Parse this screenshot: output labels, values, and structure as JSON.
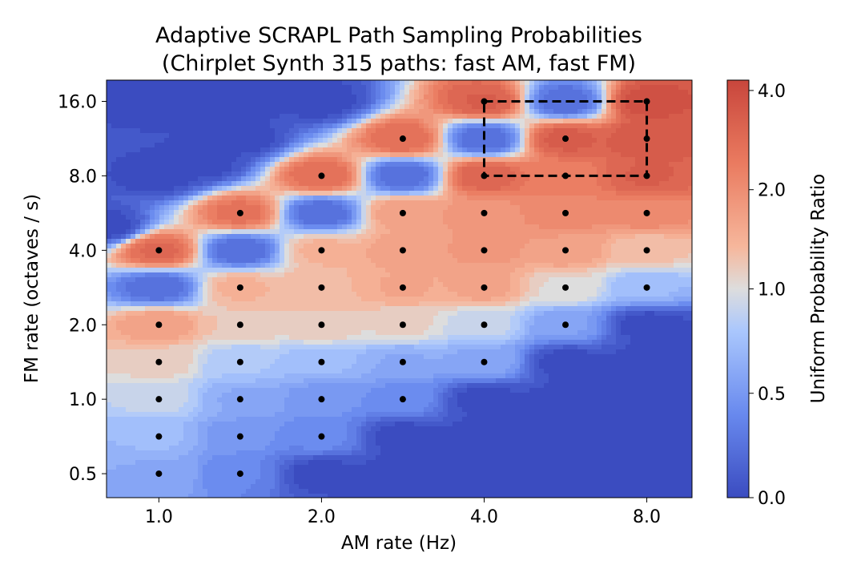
{
  "chart_data": {
    "type": "heatmap",
    "title": "Adaptive SCRAPL Path Sampling Probabilities",
    "subtitle": "(Chirplet Synth 315 paths: fast AM, fast FM)",
    "xlabel": "AM rate (Hz)",
    "ylabel": "FM rate (octaves / s)",
    "x_scale": "log2",
    "y_scale": "log2",
    "xlim": [
      0.8,
      9.7
    ],
    "ylim": [
      0.4,
      19.5
    ],
    "xticks": [
      1.0,
      2.0,
      4.0,
      8.0
    ],
    "xtick_labels": [
      "1.0",
      "2.0",
      "4.0",
      "8.0"
    ],
    "yticks": [
      0.5,
      1.0,
      2.0,
      4.0,
      8.0,
      16.0
    ],
    "ytick_labels": [
      "0.5",
      "1.0",
      "2.0",
      "4.0",
      "8.0",
      "16.0"
    ],
    "colorbar": {
      "label": "Uniform Probability Ratio",
      "ticks": [
        0.0,
        0.5,
        1.0,
        2.0,
        4.0
      ],
      "tick_labels": [
        "0.0",
        "0.5",
        "1.0",
        "2.0",
        "4.0"
      ],
      "max": 4.3,
      "colormap": "coolwarm",
      "low_color": "#3b4cc0",
      "mid_color": "#dddddd",
      "high_color": "#e7755b"
    },
    "am_rates": [
      1.0,
      1.414,
      2.0,
      2.828,
      4.0,
      5.657,
      8.0
    ],
    "fm_rates": [
      0.5,
      0.707,
      1.0,
      1.414,
      2.0,
      2.828,
      4.0,
      5.657,
      8.0,
      11.31,
      16.0
    ],
    "points": [
      [
        1.0,
        0.5
      ],
      [
        1.0,
        0.707
      ],
      [
        1.0,
        1.0
      ],
      [
        1.0,
        1.414
      ],
      [
        1.0,
        2.0
      ],
      [
        1.0,
        4.0
      ],
      [
        1.414,
        0.5
      ],
      [
        1.414,
        0.707
      ],
      [
        1.414,
        1.0
      ],
      [
        1.414,
        1.414
      ],
      [
        1.414,
        2.0
      ],
      [
        1.414,
        2.828
      ],
      [
        1.414,
        5.657
      ],
      [
        2.0,
        0.707
      ],
      [
        2.0,
        1.0
      ],
      [
        2.0,
        1.414
      ],
      [
        2.0,
        2.0
      ],
      [
        2.0,
        2.828
      ],
      [
        2.0,
        4.0
      ],
      [
        2.0,
        8.0
      ],
      [
        2.828,
        1.0
      ],
      [
        2.828,
        1.414
      ],
      [
        2.828,
        2.0
      ],
      [
        2.828,
        2.828
      ],
      [
        2.828,
        4.0
      ],
      [
        2.828,
        5.657
      ],
      [
        2.828,
        11.31
      ],
      [
        4.0,
        1.414
      ],
      [
        4.0,
        2.0
      ],
      [
        4.0,
        2.828
      ],
      [
        4.0,
        4.0
      ],
      [
        4.0,
        5.657
      ],
      [
        4.0,
        8.0
      ],
      [
        4.0,
        16.0
      ],
      [
        5.657,
        2.0
      ],
      [
        5.657,
        2.828
      ],
      [
        5.657,
        4.0
      ],
      [
        5.657,
        5.657
      ],
      [
        5.657,
        8.0
      ],
      [
        5.657,
        11.31
      ],
      [
        8.0,
        2.828
      ],
      [
        8.0,
        4.0
      ],
      [
        8.0,
        5.657
      ],
      [
        8.0,
        8.0
      ],
      [
        8.0,
        11.31
      ],
      [
        8.0,
        16.0
      ]
    ],
    "point_ratios": [
      0.62,
      0.72,
      0.9,
      1.15,
      1.7,
      2.9,
      0.38,
      0.48,
      0.62,
      0.8,
      1.2,
      1.4,
      2.6,
      0.4,
      0.5,
      0.72,
      1.2,
      1.35,
      1.4,
      2.8,
      0.42,
      0.62,
      1.1,
      1.55,
      1.65,
      1.7,
      2.8,
      0.6,
      0.9,
      1.6,
      1.8,
      1.9,
      3.1,
      3.2,
      0.55,
      1.05,
      1.7,
      2.1,
      2.4,
      3.3,
      0.72,
      1.25,
      2.1,
      3.2,
      3.5,
      3.8
    ],
    "dip_points": [
      [
        1.0,
        2.828
      ],
      [
        1.414,
        4.0
      ],
      [
        2.0,
        5.657
      ],
      [
        2.828,
        8.0
      ],
      [
        4.0,
        11.31
      ],
      [
        5.657,
        16.0
      ]
    ],
    "dip_ratio": 0.22,
    "highlight_box": {
      "am": [
        4.0,
        8.0
      ],
      "fm": [
        8.0,
        16.0
      ],
      "style": "dashed"
    },
    "grid": false
  }
}
